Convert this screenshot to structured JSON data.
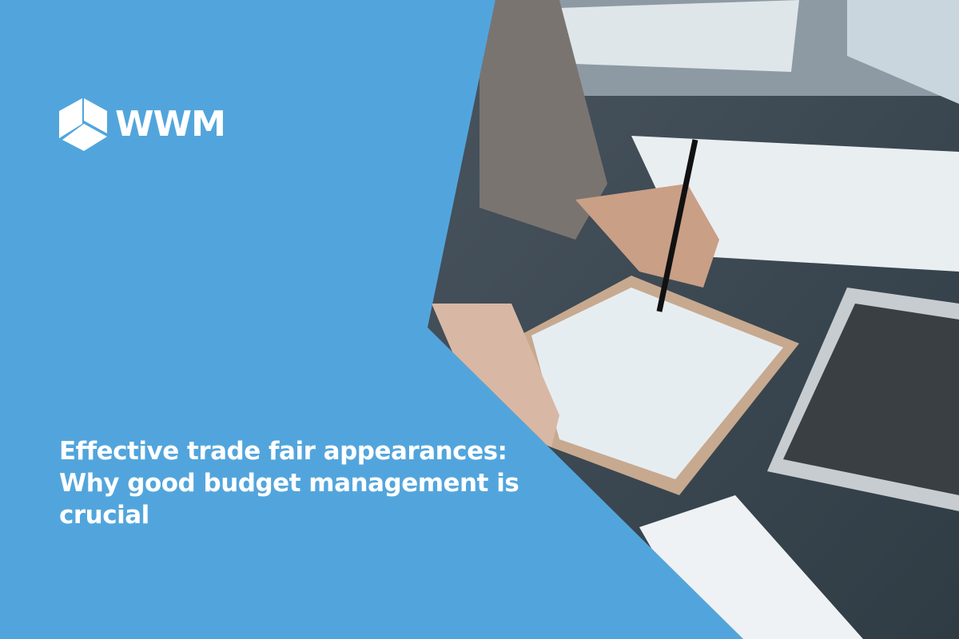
{
  "brand": {
    "logo_text": "WWM",
    "logo_icon": "cube-icon"
  },
  "headline": "Effective trade fair appearances: Why good budget management is crucial",
  "colors": {
    "background": "#52a5dc",
    "text": "#ffffff"
  }
}
